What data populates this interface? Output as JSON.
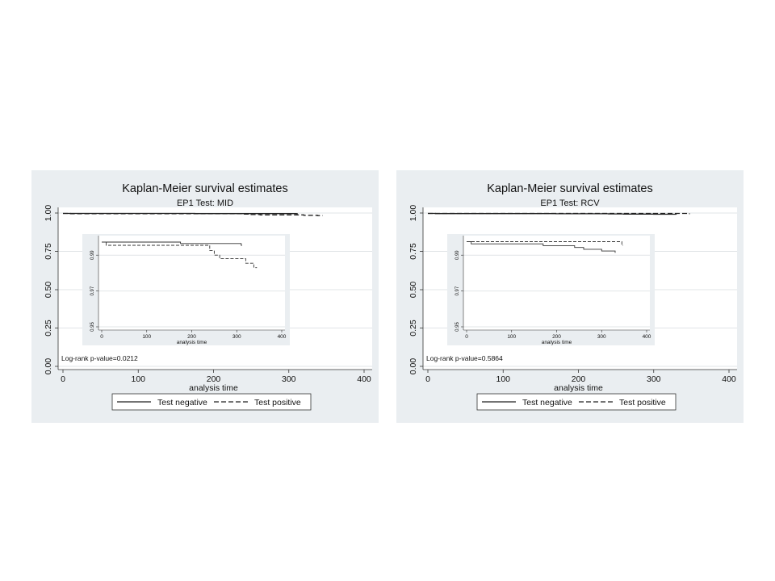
{
  "chart_data": [
    {
      "type": "line",
      "step": true,
      "title": "Kaplan-Meier survival estimates",
      "subtitle": "EP1 Test: MID",
      "xlabel": "analysis time",
      "ylabel": "",
      "xlim": [
        0,
        400
      ],
      "ylim": [
        0,
        1
      ],
      "xticks": [
        "0",
        "100",
        "200",
        "300",
        "400"
      ],
      "yticks": [
        "0.00",
        "0.25",
        "0.50",
        "0.75",
        "1.00"
      ],
      "grid": true,
      "legend": "bottom",
      "annotation": "Log-rank p-value=0.0212",
      "series": [
        {
          "name": "Test negative",
          "dash": "solid",
          "x": [
            0,
            175,
            310,
            312
          ],
          "y": [
            0.9973,
            0.9965,
            0.9955,
            0.9955
          ]
        },
        {
          "name": "Test positive",
          "dash": "dashed",
          "x": [
            0,
            10,
            240,
            250,
            262,
            320,
            338,
            345
          ],
          "y": [
            0.9973,
            0.9955,
            0.9925,
            0.99,
            0.988,
            0.9855,
            0.983,
            0.983
          ]
        }
      ],
      "inset": {
        "xlabel": "analysis time",
        "xlim": [
          0,
          400
        ],
        "ylim": [
          0.95,
          1.0
        ],
        "xticks": [
          "0",
          "100",
          "200",
          "300",
          "400"
        ],
        "yticks": [
          "0.95",
          "0.97",
          "0.99"
        ],
        "grid": true
      }
    },
    {
      "type": "line",
      "step": true,
      "title": "Kaplan-Meier survival estimates",
      "subtitle": "EP1 Test: RCV",
      "xlabel": "analysis time",
      "ylabel": "",
      "xlim": [
        0,
        400
      ],
      "ylim": [
        0,
        1
      ],
      "xticks": [
        "0",
        "100",
        "200",
        "300",
        "400"
      ],
      "yticks": [
        "0.00",
        "0.25",
        "0.50",
        "0.75",
        "1.00"
      ],
      "grid": true,
      "legend": "bottom",
      "annotation": "Log-rank p-value=0.5864",
      "series": [
        {
          "name": "Test negative",
          "dash": "solid",
          "x": [
            0,
            10,
            170,
            240,
            260,
            300,
            330
          ],
          "y": [
            0.9975,
            0.9963,
            0.9953,
            0.9943,
            0.9933,
            0.9923,
            0.9913
          ]
        },
        {
          "name": "Test positive",
          "dash": "dashed",
          "x": [
            0,
            345,
            348
          ],
          "y": [
            0.9975,
            0.9955,
            0.9955
          ]
        }
      ],
      "inset": {
        "xlabel": "analysis time",
        "xlim": [
          0,
          400
        ],
        "ylim": [
          0.95,
          1.0
        ],
        "xticks": [
          "0",
          "100",
          "200",
          "300",
          "400"
        ],
        "yticks": [
          "0.95",
          "0.97",
          "0.99"
        ],
        "grid": true
      }
    }
  ]
}
